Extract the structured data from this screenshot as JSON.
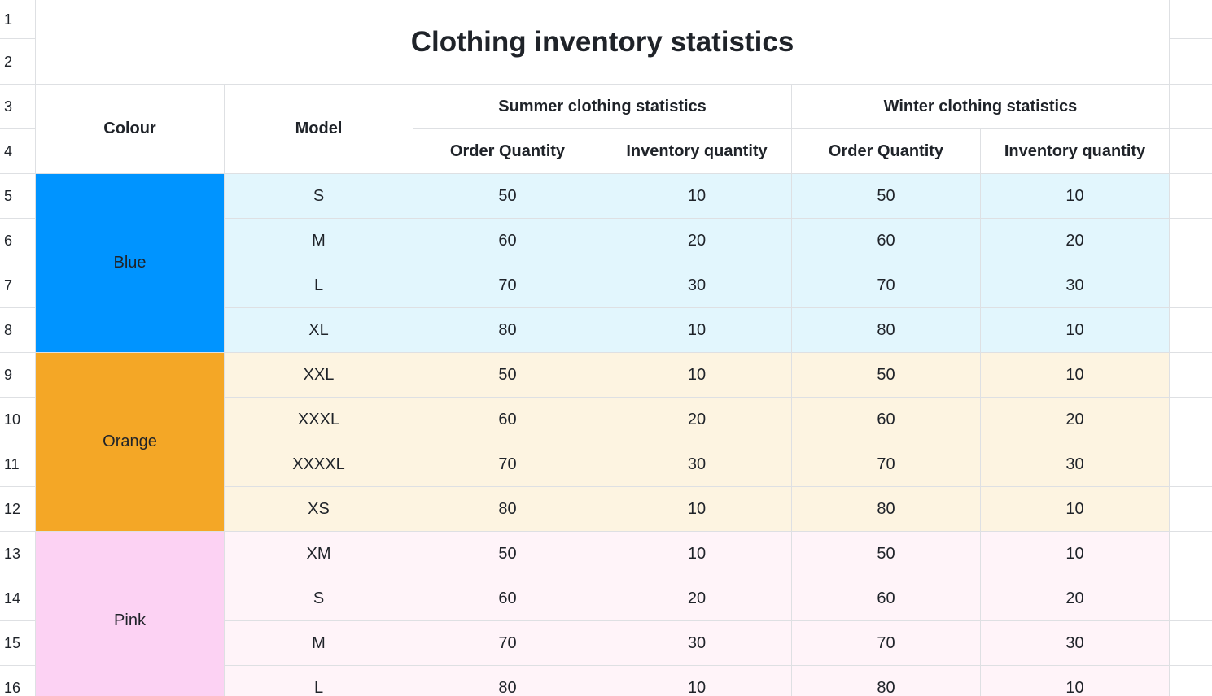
{
  "title": "Clothing inventory statistics",
  "row_numbers": [
    "1",
    "2",
    "3",
    "4",
    "5",
    "6",
    "7",
    "8",
    "9",
    "10",
    "11",
    "12",
    "13",
    "14",
    "15",
    "16"
  ],
  "headers": {
    "colour": "Colour",
    "model": "Model",
    "summer": "Summer clothing statistics",
    "winter": "Winter clothing statistics",
    "summer_order": "Order Quantity",
    "summer_inventory": "Inventory quantity",
    "winter_order": "Order Quantity",
    "winter_inventory": "Inventory quantity"
  },
  "groups": [
    {
      "colour": "Blue",
      "color_fill": "#0094ff",
      "row_fill": "#e2f6fd",
      "rows": [
        {
          "model": "S",
          "summer_order": "50",
          "summer_inventory": "10",
          "winter_order": "50",
          "winter_inventory": "10"
        },
        {
          "model": "M",
          "summer_order": "60",
          "summer_inventory": "20",
          "winter_order": "60",
          "winter_inventory": "20"
        },
        {
          "model": "L",
          "summer_order": "70",
          "summer_inventory": "30",
          "winter_order": "70",
          "winter_inventory": "30"
        },
        {
          "model": "XL",
          "summer_order": "80",
          "summer_inventory": "10",
          "winter_order": "80",
          "winter_inventory": "10"
        }
      ]
    },
    {
      "colour": "Orange",
      "color_fill": "#f4a726",
      "row_fill": "#fdf4e1",
      "rows": [
        {
          "model": "XXL",
          "summer_order": "50",
          "summer_inventory": "10",
          "winter_order": "50",
          "winter_inventory": "10"
        },
        {
          "model": "XXXL",
          "summer_order": "60",
          "summer_inventory": "20",
          "winter_order": "60",
          "winter_inventory": "20"
        },
        {
          "model": "XXXXL",
          "summer_order": "70",
          "summer_inventory": "30",
          "winter_order": "70",
          "winter_inventory": "30"
        },
        {
          "model": "XS",
          "summer_order": "80",
          "summer_inventory": "10",
          "winter_order": "80",
          "winter_inventory": "10"
        }
      ]
    },
    {
      "colour": "Pink",
      "color_fill": "#fcd2f3",
      "row_fill": "#fff4f9",
      "rows": [
        {
          "model": "XM",
          "summer_order": "50",
          "summer_inventory": "10",
          "winter_order": "50",
          "winter_inventory": "10"
        },
        {
          "model": "S",
          "summer_order": "60",
          "summer_inventory": "20",
          "winter_order": "60",
          "winter_inventory": "20"
        },
        {
          "model": "M",
          "summer_order": "70",
          "summer_inventory": "30",
          "winter_order": "70",
          "winter_inventory": "30"
        },
        {
          "model": "L",
          "summer_order": "80",
          "summer_inventory": "10",
          "winter_order": "80",
          "winter_inventory": "10"
        }
      ]
    }
  ]
}
